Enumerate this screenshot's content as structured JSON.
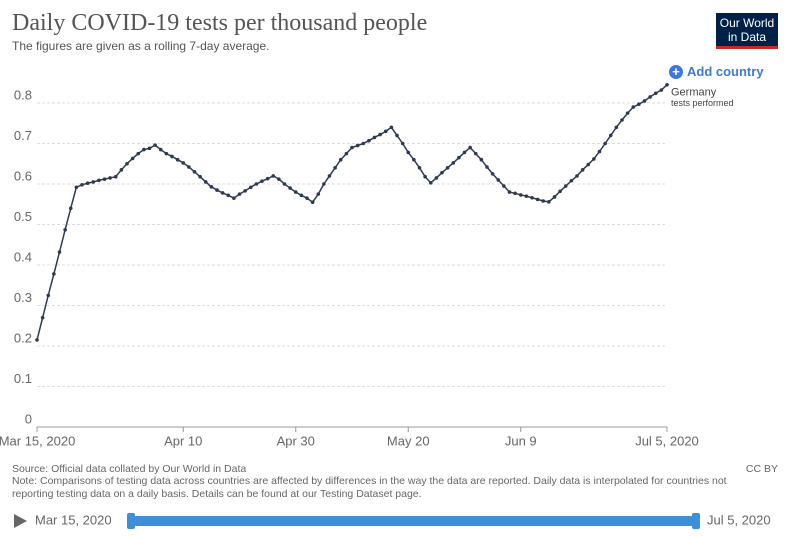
{
  "header": {
    "title": "Daily COVID-19 tests per thousand people",
    "subtitle": "The figures are given as a rolling 7-day average.",
    "logo": [
      "Our World",
      "in Data"
    ],
    "add_button": "Add country"
  },
  "chart_data": {
    "type": "line",
    "x": [
      "2020-03-15",
      "2020-03-16",
      "2020-03-17",
      "2020-03-18",
      "2020-03-19",
      "2020-03-20",
      "2020-03-21",
      "2020-03-22",
      "2020-03-23",
      "2020-03-24",
      "2020-03-25",
      "2020-03-26",
      "2020-03-27",
      "2020-03-28",
      "2020-03-29",
      "2020-03-30",
      "2020-03-31",
      "2020-04-01",
      "2020-04-02",
      "2020-04-03",
      "2020-04-04",
      "2020-04-05",
      "2020-04-06",
      "2020-04-07",
      "2020-04-08",
      "2020-04-09",
      "2020-04-10",
      "2020-04-11",
      "2020-04-12",
      "2020-04-13",
      "2020-04-14",
      "2020-04-15",
      "2020-04-16",
      "2020-04-17",
      "2020-04-18",
      "2020-04-19",
      "2020-04-20",
      "2020-04-21",
      "2020-04-22",
      "2020-04-23",
      "2020-04-24",
      "2020-04-25",
      "2020-04-26",
      "2020-04-27",
      "2020-04-28",
      "2020-04-29",
      "2020-04-30",
      "2020-05-01",
      "2020-05-02",
      "2020-05-03",
      "2020-05-04",
      "2020-05-05",
      "2020-05-06",
      "2020-05-07",
      "2020-05-08",
      "2020-05-09",
      "2020-05-10",
      "2020-05-11",
      "2020-05-12",
      "2020-05-13",
      "2020-05-14",
      "2020-05-15",
      "2020-05-16",
      "2020-05-17",
      "2020-05-18",
      "2020-05-19",
      "2020-05-20",
      "2020-05-21",
      "2020-05-22",
      "2020-05-23",
      "2020-05-24",
      "2020-05-25",
      "2020-05-26",
      "2020-05-27",
      "2020-05-28",
      "2020-05-29",
      "2020-05-30",
      "2020-05-31",
      "2020-06-01",
      "2020-06-02",
      "2020-06-03",
      "2020-06-04",
      "2020-06-05",
      "2020-06-06",
      "2020-06-07",
      "2020-06-08",
      "2020-06-09",
      "2020-06-10",
      "2020-06-11",
      "2020-06-12",
      "2020-06-13",
      "2020-06-14",
      "2020-06-15",
      "2020-06-16",
      "2020-06-17",
      "2020-06-18",
      "2020-06-19",
      "2020-06-20",
      "2020-06-21",
      "2020-06-22",
      "2020-06-23",
      "2020-06-24",
      "2020-06-25",
      "2020-06-26",
      "2020-06-27",
      "2020-06-28",
      "2020-06-29",
      "2020-06-30",
      "2020-07-01",
      "2020-07-02",
      "2020-07-03",
      "2020-07-04",
      "2020-07-05"
    ],
    "series": [
      {
        "name": "Germany",
        "annotation": "tests performed",
        "color": "#2d3a52",
        "values": [
          0.215,
          0.27,
          0.325,
          0.378,
          0.432,
          0.487,
          0.54,
          0.592,
          0.598,
          0.602,
          0.605,
          0.609,
          0.612,
          0.615,
          0.618,
          0.635,
          0.65,
          0.663,
          0.675,
          0.685,
          0.688,
          0.696,
          0.685,
          0.675,
          0.668,
          0.66,
          0.652,
          0.642,
          0.63,
          0.618,
          0.605,
          0.593,
          0.585,
          0.578,
          0.572,
          0.565,
          0.575,
          0.583,
          0.592,
          0.6,
          0.607,
          0.613,
          0.62,
          0.612,
          0.6,
          0.59,
          0.58,
          0.572,
          0.565,
          0.555,
          0.575,
          0.6,
          0.62,
          0.64,
          0.66,
          0.675,
          0.69,
          0.695,
          0.7,
          0.707,
          0.715,
          0.722,
          0.73,
          0.74,
          0.72,
          0.7,
          0.678,
          0.66,
          0.64,
          0.618,
          0.603,
          0.615,
          0.628,
          0.64,
          0.652,
          0.665,
          0.678,
          0.69,
          0.675,
          0.66,
          0.642,
          0.625,
          0.61,
          0.595,
          0.58,
          0.577,
          0.573,
          0.57,
          0.566,
          0.562,
          0.558,
          0.556,
          0.568,
          0.582,
          0.595,
          0.608,
          0.62,
          0.635,
          0.648,
          0.662,
          0.68,
          0.7,
          0.72,
          0.74,
          0.758,
          0.775,
          0.79,
          0.797,
          0.805,
          0.815,
          0.824,
          0.832,
          0.845
        ]
      }
    ],
    "xlim": [
      "2020-03-15",
      "2020-07-05"
    ],
    "xticks": [
      {
        "value": "2020-03-15",
        "label": "Mar 15, 2020"
      },
      {
        "value": "2020-04-10",
        "label": "Apr 10"
      },
      {
        "value": "2020-04-30",
        "label": "Apr 30"
      },
      {
        "value": "2020-05-20",
        "label": "May 20"
      },
      {
        "value": "2020-06-09",
        "label": "Jun 9"
      },
      {
        "value": "2020-07-05",
        "label": "Jul 5, 2020"
      }
    ],
    "ylim": [
      0,
      0.8
    ],
    "yticks": [
      0,
      0.1,
      0.2,
      0.3,
      0.4,
      0.5,
      0.6,
      0.7,
      0.8
    ],
    "grid": true
  },
  "footer": {
    "source": "Source: Official data collated by Our World in Data",
    "license": "CC BY",
    "note": "Note: Comparisons of testing data across countries are affected by differences in the way the data are reported. Daily data is interpolated for countries not reporting testing data on a daily basis. Details can be found at our Testing Dataset page."
  },
  "timeline": {
    "start": "Mar 15, 2020",
    "end": "Jul 5, 2020"
  }
}
